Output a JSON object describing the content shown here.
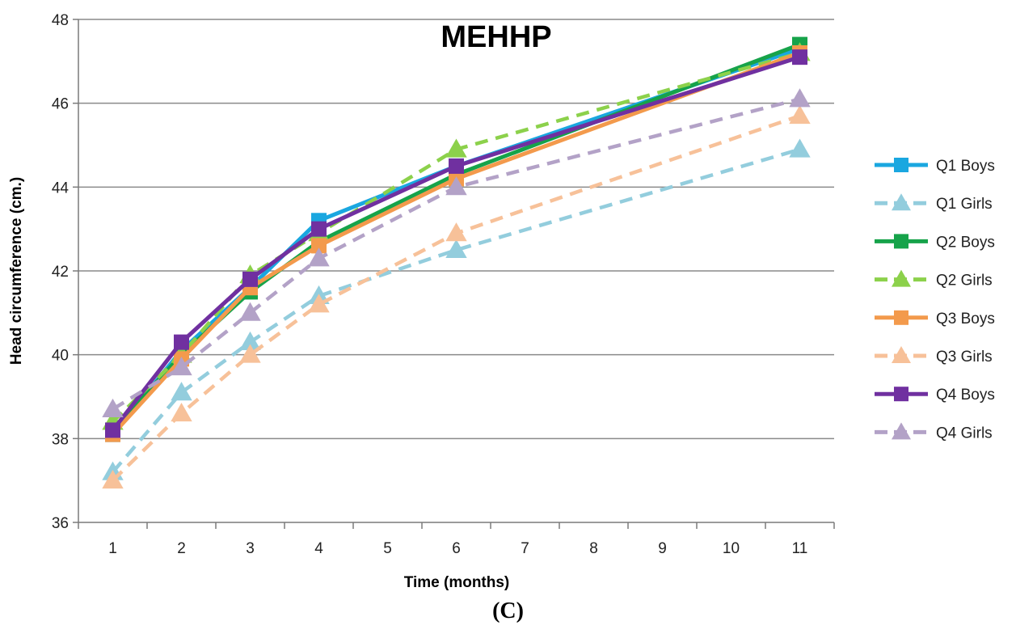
{
  "panel_label": "(C)",
  "chart_data": {
    "type": "line",
    "title": "MEHHP",
    "xlabel": "Time (months)",
    "ylabel": "Head circumference (cm.)",
    "categories": [
      "1",
      "2",
      "3",
      "4",
      "5",
      "6",
      "7",
      "8",
      "9",
      "10",
      "11"
    ],
    "x": [
      1,
      2,
      3,
      4,
      6,
      11
    ],
    "ylim": [
      36,
      48
    ],
    "yticks": [
      36,
      38,
      40,
      42,
      44,
      46,
      48
    ],
    "grid": "horizontal",
    "legend_position": "right",
    "series": [
      {
        "name": "Q1 Boys",
        "color": "#1aa7e0",
        "dashed": false,
        "marker": "square",
        "values": [
          38.1,
          40.1,
          41.6,
          43.2,
          44.5,
          47.3
        ]
      },
      {
        "name": "Q1 Girls",
        "color": "#93cddd",
        "dashed": true,
        "marker": "triangle",
        "values": [
          37.2,
          39.1,
          40.3,
          41.4,
          42.5,
          44.9
        ]
      },
      {
        "name": "Q2 Boys",
        "color": "#16a34a",
        "dashed": false,
        "marker": "square",
        "values": [
          38.2,
          40.0,
          41.5,
          42.7,
          44.3,
          47.4
        ]
      },
      {
        "name": "Q2 Girls",
        "color": "#8cd14b",
        "dashed": true,
        "marker": "triangle",
        "values": [
          38.4,
          40.0,
          41.9,
          42.9,
          44.9,
          47.2
        ]
      },
      {
        "name": "Q3 Boys",
        "color": "#f39a4c",
        "dashed": false,
        "marker": "square",
        "values": [
          38.1,
          39.9,
          41.6,
          42.6,
          44.2,
          47.2
        ]
      },
      {
        "name": "Q3 Girls",
        "color": "#f7c199",
        "dashed": true,
        "marker": "triangle",
        "values": [
          37.0,
          38.6,
          40.0,
          41.2,
          42.9,
          45.7
        ]
      },
      {
        "name": "Q4 Boys",
        "color": "#7030a0",
        "dashed": false,
        "marker": "square",
        "values": [
          38.2,
          40.3,
          41.8,
          43.0,
          44.5,
          47.1
        ]
      },
      {
        "name": "Q4 Girls",
        "color": "#b3a2c7",
        "dashed": true,
        "marker": "triangle",
        "values": [
          38.7,
          39.7,
          41.0,
          42.3,
          44.0,
          46.1
        ]
      }
    ]
  }
}
